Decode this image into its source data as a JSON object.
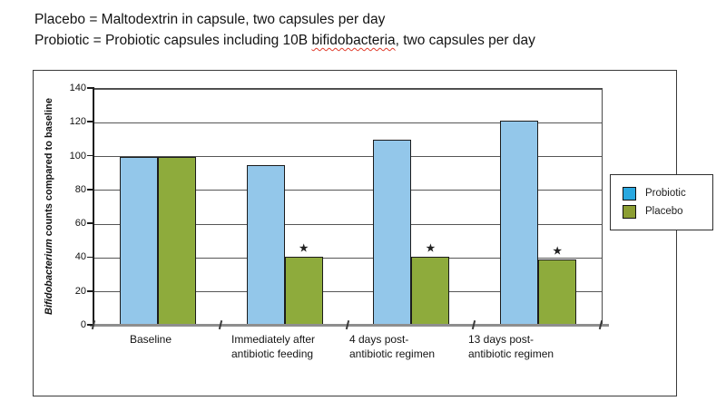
{
  "header": {
    "line1": "Placebo = Maltodextrin in capsule, two capsules per day",
    "line2_prefix": "Probiotic = Probiotic capsules including 10B ",
    "line2_misspelled": "bifidobacteria",
    "line2_suffix": ", two capsules per day"
  },
  "chart_data": {
    "type": "bar",
    "title": "",
    "ylabel_italic_word": "Bifidobacterium",
    "ylabel_rest": " counts compared to baseline",
    "ylim": [
      0,
      140
    ],
    "yticks": [
      0,
      20,
      40,
      60,
      80,
      100,
      120,
      140
    ],
    "grid": true,
    "legend_position": "right",
    "categories": [
      [
        "Baseline"
      ],
      [
        "Immediately after",
        "antibiotic feeding"
      ],
      [
        "4 days post-",
        "antibiotic regimen"
      ],
      [
        "13 days post-",
        "antibiotic regimen"
      ]
    ],
    "series": [
      {
        "name": "Probiotic",
        "color": "#93C7EA",
        "legend_color": "#29A8E0",
        "values": [
          100,
          95,
          110,
          121
        ],
        "significance": [
          false,
          false,
          false,
          false
        ]
      },
      {
        "name": "Placebo",
        "color": "#8EAB3C",
        "legend_color": "#8C9E33",
        "values": [
          100,
          41,
          41,
          39
        ],
        "significance": [
          false,
          true,
          true,
          true
        ]
      }
    ],
    "significance_marker": "★"
  }
}
